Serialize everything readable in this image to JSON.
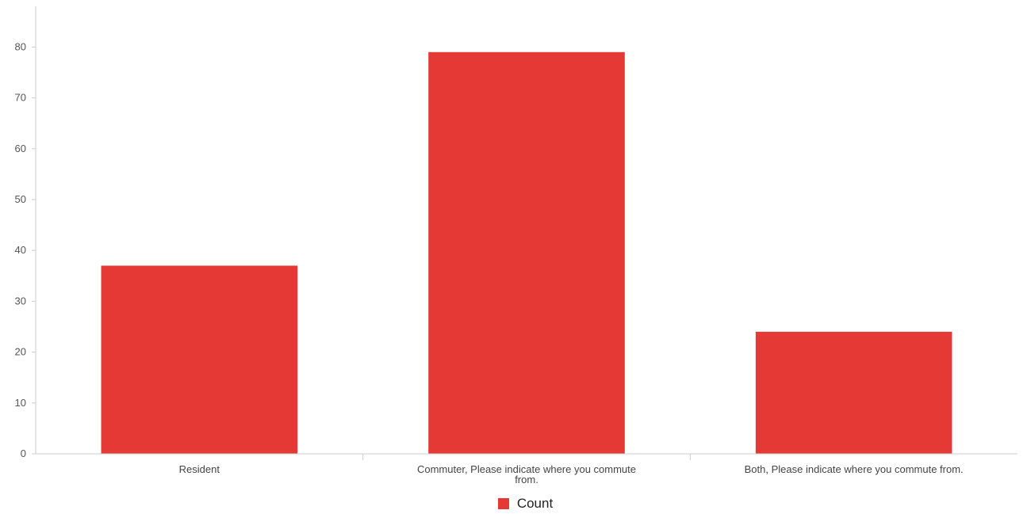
{
  "chart_data": {
    "type": "bar",
    "categories": [
      "Resident",
      "Commuter, Please indicate where you commute from.",
      "Both, Please indicate where you commute from."
    ],
    "series": [
      {
        "name": "Count",
        "values": [
          37,
          79,
          24
        ],
        "color": "#e53935"
      }
    ],
    "ylim": [
      0,
      88
    ],
    "yticks": [
      0,
      10,
      20,
      30,
      40,
      50,
      60,
      70,
      80
    ],
    "grid": false,
    "legend_position": "bottom"
  }
}
